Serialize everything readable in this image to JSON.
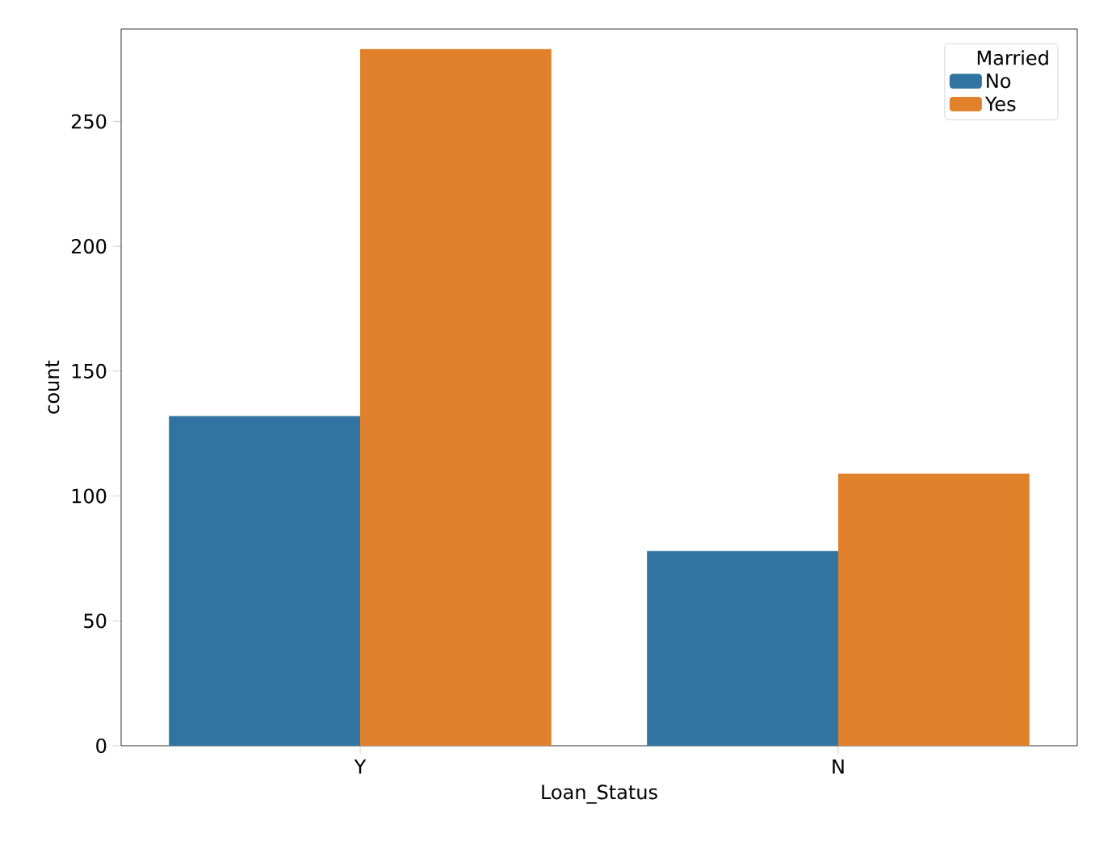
{
  "chart_data": {
    "type": "bar",
    "xlabel": "Loan_Status",
    "ylabel": "count",
    "legend_title": "Married",
    "categories": [
      "Y",
      "N"
    ],
    "series": [
      {
        "name": "No",
        "color": "#3274a1",
        "values": [
          132,
          78
        ]
      },
      {
        "name": "Yes",
        "color": "#e1812c",
        "values": [
          279,
          109
        ]
      }
    ],
    "ylim": [
      0,
      287
    ],
    "yticks": [
      0,
      50,
      100,
      150,
      200,
      250
    ],
    "grid": false,
    "legend": "top right"
  }
}
